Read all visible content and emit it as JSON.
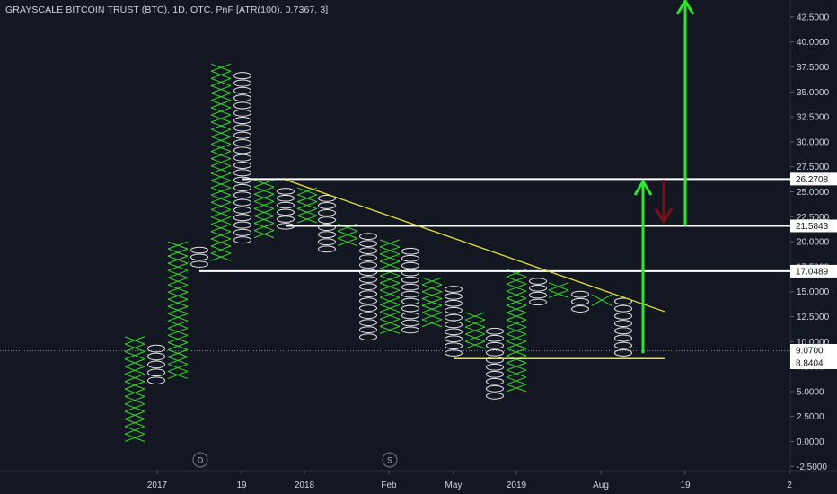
{
  "header": {
    "title": "GRAYSCALE BITCOIN TRUST (BTC), 1D, OTC, PnF [ATR(100), 0.7367, 3]"
  },
  "colors": {
    "background": "#131722",
    "x_column": "#39d629",
    "o_column": "#e6e6e6",
    "level_line": "#ffffff",
    "trend_line": "#e8e23a",
    "up_arrow": "#2ee62e",
    "down_arrow": "#7a0f14",
    "axis_text": "#d1d4dc"
  },
  "chart_data": {
    "type": "point-and-figure",
    "box_size": 0.7367,
    "reversal": 3,
    "ylim": [
      -2.5,
      43.5
    ],
    "y_ticks": [
      "42.5000",
      "40.0000",
      "37.5000",
      "35.0000",
      "32.5000",
      "30.0000",
      "27.5000",
      "25.0000",
      "22.5000",
      "20.0000",
      "17.5000",
      "15.0000",
      "12.5000",
      "10.0000",
      "7.5000",
      "5.0000",
      "2.5000",
      "0.0000",
      "-2.5000"
    ],
    "x_ticks": [
      "2017",
      "19",
      "2018",
      "Feb",
      "May",
      "2019",
      "Aug",
      "19",
      "2"
    ],
    "event_markers": [
      "D",
      "S"
    ],
    "price_labels": [
      "26.2708",
      "21.5843",
      "17.0489",
      "9.0700",
      "8.8404"
    ],
    "columns": [
      {
        "type": "X",
        "low": 0.0,
        "high": 10.5
      },
      {
        "type": "O",
        "low": 5.7,
        "high": 9.7
      },
      {
        "type": "X",
        "low": 6.3,
        "high": 20.0
      },
      {
        "type": "O",
        "low": 17.4,
        "high": 19.5
      },
      {
        "type": "X",
        "low": 18.1,
        "high": 37.8
      },
      {
        "type": "O",
        "low": 19.8,
        "high": 37.0
      },
      {
        "type": "X",
        "low": 20.4,
        "high": 26.2
      },
      {
        "type": "O",
        "low": 21.2,
        "high": 25.4
      },
      {
        "type": "X",
        "low": 21.9,
        "high": 25.4
      },
      {
        "type": "O",
        "low": 18.9,
        "high": 24.7
      },
      {
        "type": "X",
        "low": 19.6,
        "high": 21.8
      },
      {
        "type": "O",
        "low": 10.1,
        "high": 20.9
      },
      {
        "type": "X",
        "low": 10.8,
        "high": 20.2
      },
      {
        "type": "O",
        "low": 10.8,
        "high": 19.4
      },
      {
        "type": "X",
        "low": 11.5,
        "high": 16.4
      },
      {
        "type": "O",
        "low": 8.5,
        "high": 15.6
      },
      {
        "type": "X",
        "low": 9.3,
        "high": 12.9
      },
      {
        "type": "O",
        "low": 4.2,
        "high": 11.4
      },
      {
        "type": "X",
        "low": 5.0,
        "high": 17.2
      },
      {
        "type": "O",
        "low": 13.6,
        "high": 16.4
      },
      {
        "type": "X",
        "low": 14.4,
        "high": 15.9
      },
      {
        "type": "O",
        "low": 12.9,
        "high": 15.1
      },
      {
        "type": "X",
        "low": 13.6,
        "high": 14.7
      },
      {
        "type": "O",
        "low": 8.5,
        "high": 14.4
      }
    ],
    "levels": [
      26.2708,
      21.5843,
      17.0489,
      9.07,
      8.8404
    ]
  }
}
